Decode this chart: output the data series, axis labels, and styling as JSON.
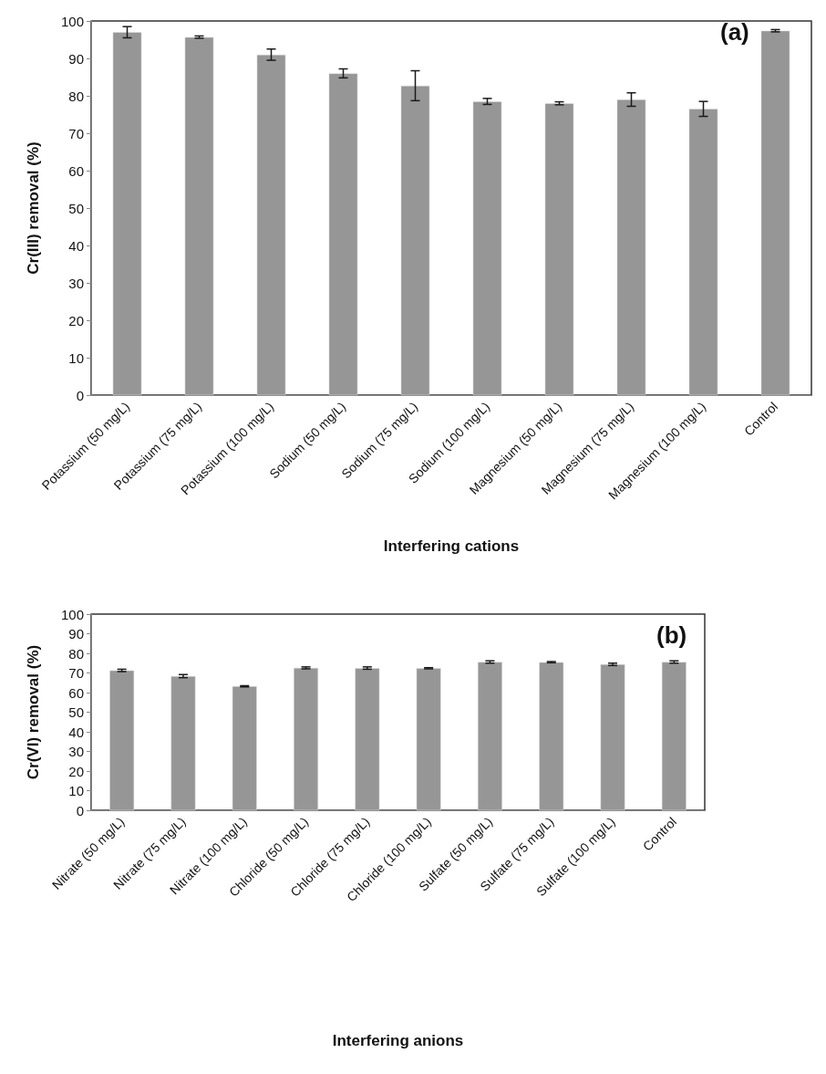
{
  "chart_data": [
    {
      "type": "bar",
      "ylabel": "Cr(III) removal (%)",
      "xlabel": "Interfering cations",
      "annotations": [
        "(a)"
      ],
      "categories": [
        "Potassium (50 mg/L)",
        "Potassium (75 mg/L)",
        "Potassium (100 mg/L)",
        "Sodium (50 mg/L)",
        "Sodium (75 mg/L)",
        "Sodium (100 mg/L)",
        "Magnesium (50 mg/L)",
        "Magnesium (75 mg/L)",
        "Magnesium (100 mg/L)",
        "Control"
      ],
      "values": [
        97,
        95.7,
        91,
        86,
        82.7,
        78.5,
        78,
        79,
        76.5,
        97.4
      ],
      "errors": [
        1.5,
        0.3,
        1.5,
        1.2,
        4,
        0.8,
        0.4,
        1.8,
        2,
        0.3
      ],
      "color": "#969696",
      "ylim": [
        0,
        100
      ],
      "yticks": [
        0,
        10,
        20,
        30,
        40,
        50,
        60,
        70,
        80,
        90,
        100
      ],
      "grid": false
    },
    {
      "type": "bar",
      "ylabel": "Cr(VI) removal (%)",
      "xlabel": "Interfering anions",
      "annotations": [
        "(b)"
      ],
      "categories": [
        "Nitrate (50 mg/L)",
        "Nitrate (75 mg/L)",
        "Nitrate (100 mg/L)",
        "Chloride (50 mg/L)",
        "Chloride (75 mg/L)",
        "Chloride (100 mg/L)",
        "Sulfate (50 mg/L)",
        "Sulfate (75 mg/L)",
        "Sulfate (100 mg/L)",
        "Control"
      ],
      "values": [
        71.3,
        68.4,
        63.2,
        72.6,
        72.5,
        72.4,
        75.6,
        75.5,
        74.4,
        75.6
      ],
      "errors": [
        0.6,
        0.8,
        0.3,
        0.5,
        0.6,
        0.3,
        0.6,
        0.3,
        0.6,
        0.6
      ],
      "color": "#969696",
      "ylim": [
        0,
        100
      ],
      "yticks": [
        0,
        10,
        20,
        30,
        40,
        50,
        60,
        70,
        80,
        90,
        100
      ],
      "grid": false
    }
  ]
}
